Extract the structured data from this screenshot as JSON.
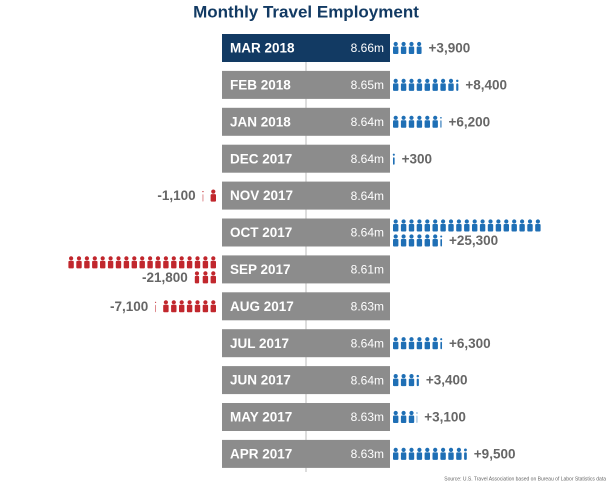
{
  "chart_data": {
    "type": "pictogram",
    "title": "Monthly Travel Employment",
    "categories": [
      "MAR 2018",
      "FEB 2018",
      "JAN 2018",
      "DEC 2017",
      "NOV 2017",
      "OCT 2017",
      "SEP 2017",
      "AUG 2017",
      "JUL 2017",
      "JUN 2017",
      "MAY 2017",
      "APR 2017"
    ],
    "employment": [
      "8.66m",
      "8.65m",
      "8.64m",
      "8.64m",
      "8.64m",
      "8.64m",
      "8.61m",
      "8.63m",
      "8.64m",
      "8.64m",
      "8.63m",
      "8.63m"
    ],
    "values": [
      3900,
      8400,
      6200,
      300,
      -1100,
      25300,
      -21800,
      -7100,
      6300,
      3400,
      3100,
      9500
    ],
    "value_labels": [
      "+3,900",
      "+8,400",
      "+6,200",
      "+300",
      "-1,100",
      "+25,300",
      "-21,800",
      "-7,100",
      "+6,300",
      "+3,400",
      "+3,100",
      "+9,500"
    ],
    "highlight_color": "#123a63",
    "bar_color": "#8c8c8c",
    "positive_color": "#1f6fb5",
    "negative_color": "#c1272d",
    "source": "Source: U.S. Travel Association based on Bureau of Labor Statistics data"
  }
}
